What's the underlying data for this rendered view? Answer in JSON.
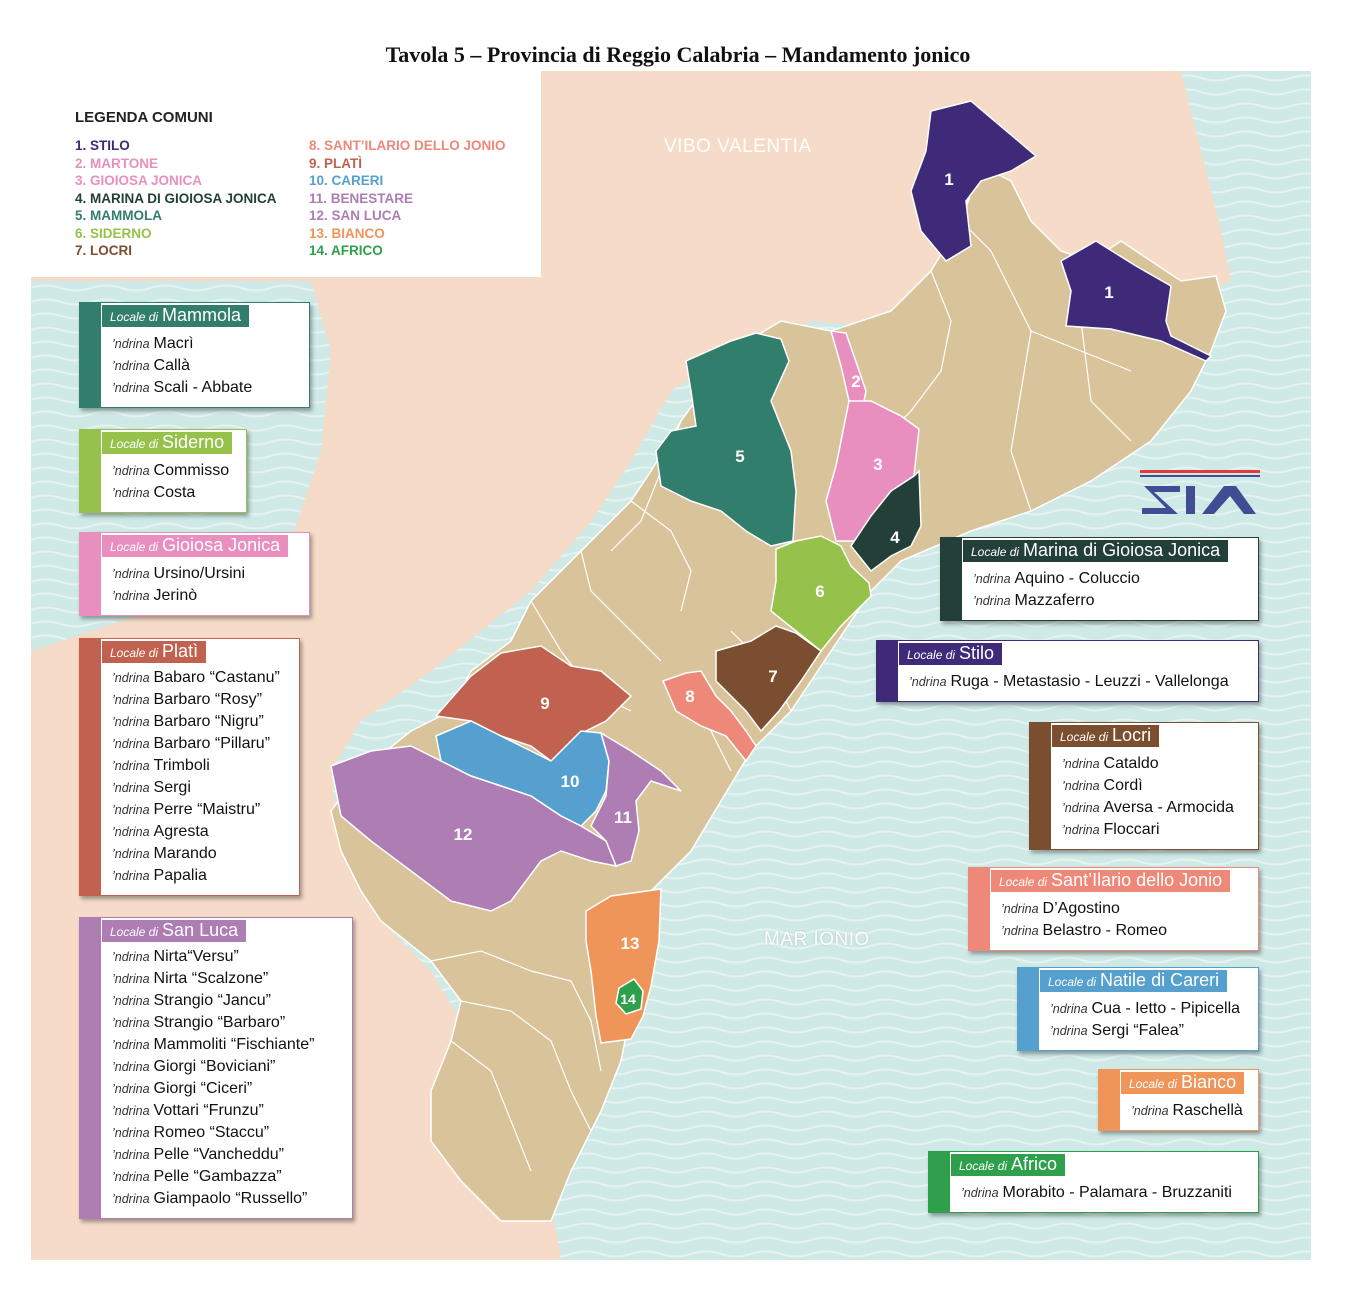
{
  "title": "Tavola 5 – Provincia di Reggio Calabria – Mandamento jonico",
  "legend": {
    "title": "LEGENDA COMUNI",
    "col1": [
      {
        "label": "1. STILO",
        "color": "#3e2a78"
      },
      {
        "label": "2. MARTONE",
        "color": "#e98fbf"
      },
      {
        "label": "3. GIOIOSA JONICA",
        "color": "#e98fbf"
      },
      {
        "label": "4. MARINA DI GIOIOSA JONICA",
        "color": "#223f38"
      },
      {
        "label": "5. MAMMOLA",
        "color": "#327e6c"
      },
      {
        "label": "6. SIDERNO",
        "color": "#96c14a"
      },
      {
        "label": "7. LOCRI",
        "color": "#7a4e2e"
      }
    ],
    "col2": [
      {
        "label": "8. SANT’ILARIO DELLO JONIO",
        "color": "#ee8878"
      },
      {
        "label": "9. PLATÌ",
        "color": "#c1614f"
      },
      {
        "label": "10. CARERI",
        "color": "#56a0cf"
      },
      {
        "label": "11. BENESTARE",
        "color": "#ad7db4"
      },
      {
        "label": "12. SAN LUCA",
        "color": "#ad7db4"
      },
      {
        "label": "13. BIANCO",
        "color": "#f0955a"
      },
      {
        "label": "14. AFRICO",
        "color": "#2ea04c"
      }
    ]
  },
  "map_labels": {
    "vibo": "VIBO VALENTIA",
    "mar": "MAR IONIO"
  },
  "comuni_numbers": [
    "1",
    "1",
    "2",
    "3",
    "4",
    "5",
    "6",
    "7",
    "8",
    "9",
    "10",
    "11",
    "12",
    "13",
    "14"
  ],
  "ndrina_word": "’ndrina",
  "locali": [
    {
      "key": "mammola",
      "prefix": "Locale di",
      "name": "Mammola",
      "color": "#327e6c",
      "ndrine": [
        "Macrì",
        "Callà",
        "Scali - Abbate"
      ]
    },
    {
      "key": "siderno",
      "prefix": "Locale di",
      "name": "Siderno",
      "color": "#96c14a",
      "ndrine": [
        "Commisso",
        "Costa"
      ]
    },
    {
      "key": "gioiosa",
      "prefix": "Locale di",
      "name": "Gioiosa Jonica",
      "color": "#e98fbf",
      "ndrine": [
        "Ursino/Ursini",
        "Jerinò"
      ]
    },
    {
      "key": "plati",
      "prefix": "Locale di",
      "name": "Platì",
      "color": "#c1614f",
      "ndrine": [
        "Babaro “Castanu”",
        "Barbaro “Rosy”",
        "Barbaro “Nigru”",
        "Barbaro “Pillaru”",
        "Trimboli",
        "Sergi",
        "Perre “Maistru”",
        "Agresta",
        "Marando",
        "Papalia"
      ]
    },
    {
      "key": "sanluca",
      "prefix": "Locale di",
      "name": "San Luca",
      "color": "#ad7db4",
      "ndrine": [
        "Nirta“Versu”",
        "Nirta “Scalzone”",
        "Strangio “Jancu”",
        "Strangio “Barbaro”",
        "Mammoliti “Fischiante”",
        "Giorgi “Boviciani”",
        "Giorgi “Ciceri”",
        "Vottari “Frunzu”",
        "Romeo “Staccu”",
        "Pelle “Vancheddu”",
        "Pelle “Gambazza”",
        "Giampaolo “Russello”"
      ]
    },
    {
      "key": "marina",
      "prefix": "Locale di",
      "name": "Marina di Gioiosa Jonica",
      "color": "#223f38",
      "ndrine": [
        "Aquino - Coluccio",
        "Mazzaferro"
      ]
    },
    {
      "key": "stilo",
      "prefix": "Locale di",
      "name": "Stilo",
      "color": "#3e2a78",
      "ndrine": [
        "Ruga - Metastasio - Leuzzi - Vallelonga"
      ]
    },
    {
      "key": "locri",
      "prefix": "Locale di",
      "name": "Locri",
      "color": "#7a4e2e",
      "ndrine": [
        "Cataldo",
        "Cordì",
        "Aversa - Armocida",
        "Floccari"
      ]
    },
    {
      "key": "santilario",
      "prefix": "Locale di",
      "name": "Sant’Ilario dello Jonio",
      "color": "#ee8878",
      "ndrine": [
        "D’Agostino",
        "Belastro - Romeo"
      ]
    },
    {
      "key": "careri",
      "prefix": "Locale di",
      "name": "Natile di Careri",
      "color": "#56a0cf",
      "ndrine": [
        "Cua - Ietto - Pipicella",
        "Sergi “Falea”"
      ]
    },
    {
      "key": "bianco",
      "prefix": "Locale di",
      "name": "Bianco",
      "color": "#f0955a",
      "ndrine": [
        "Raschellà"
      ]
    },
    {
      "key": "africo",
      "prefix": "Locale di",
      "name": "Africo",
      "color": "#2ea04c",
      "ndrine": [
        "Morabito - Palamara - Bruzzaniti"
      ]
    }
  ],
  "colors": {
    "sea": "#cde8e6",
    "land_outside": "#f6dcc8",
    "mandamento": "#d8c39a",
    "border": "#ffffff"
  }
}
